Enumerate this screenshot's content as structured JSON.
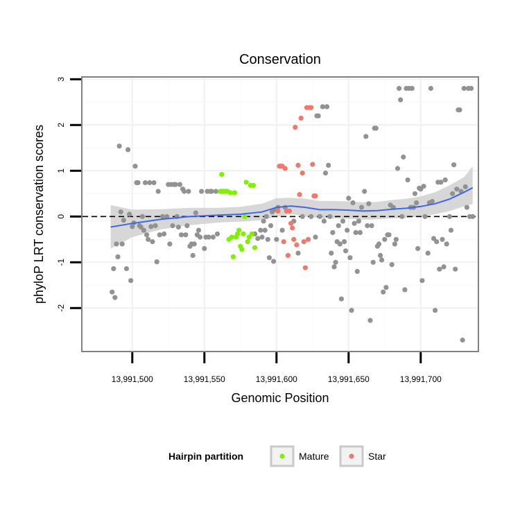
{
  "chart_data": {
    "type": "scatter",
    "title": "Conservation",
    "xlabel": "Genomic Position",
    "ylabel": "phyloP LRT conservation scores",
    "xlim": [
      13991465,
      13991740
    ],
    "ylim": [
      -2.95,
      3.05
    ],
    "x_ticks": [
      13991500,
      13991550,
      13991600,
      13991650,
      13991700
    ],
    "x_tick_labels": [
      "13,991,500",
      "13,991,550",
      "13,991,600",
      "13,991,650",
      "13,991,700"
    ],
    "y_ticks": [
      -2,
      -1,
      0,
      1,
      2,
      3
    ],
    "y_tick_labels": [
      "-2",
      "-1",
      "0",
      "1",
      "2",
      "3"
    ],
    "grid": true,
    "reference_line": {
      "y": 0,
      "style": "dashed"
    },
    "legend": {
      "title": "Hairpin partition",
      "placement": "bottom",
      "entries": [
        {
          "label": "Mature",
          "color": "#7ff000"
        },
        {
          "label": "Star",
          "color": "#f0796c"
        }
      ]
    },
    "colors": {
      "other": "#929292",
      "Mature": "#7ff000",
      "Star": "#f0796c",
      "smooth": "#3b67e8",
      "band": "#d0d0d0"
    },
    "series": [
      {
        "name": "Other",
        "points": [
          [
            13991486,
            -1.65
          ],
          [
            13991487,
            -1.14
          ],
          [
            13991488,
            -1.77
          ],
          [
            13991489,
            -0.6
          ],
          [
            13991490,
            -0.88
          ],
          [
            13991491,
            1.54
          ],
          [
            13991492,
            0.1
          ],
          [
            13991493,
            -0.6
          ],
          [
            13991494,
            -0.08
          ],
          [
            13991496,
            -1.14
          ],
          [
            13991497,
            1.46
          ],
          [
            13991498,
            0.05
          ],
          [
            13991499,
            -1.4
          ],
          [
            13991500,
            -0.22
          ],
          [
            13991501,
            -0.14
          ],
          [
            13991502,
            1.1
          ],
          [
            13991503,
            0.74
          ],
          [
            13991504,
            0.74
          ],
          [
            13991505,
            -0.2
          ],
          [
            13991506,
            -0.23
          ],
          [
            13991507,
            0.0
          ],
          [
            13991508,
            -0.3
          ],
          [
            13991509,
            0.74
          ],
          [
            13991510,
            -0.4
          ],
          [
            13991511,
            -0.5
          ],
          [
            13991512,
            0.74
          ],
          [
            13991513,
            -0.22
          ],
          [
            13991514,
            -0.55
          ],
          [
            13991515,
            0.74
          ],
          [
            13991516,
            -0.2
          ],
          [
            13991517,
            -0.99
          ],
          [
            13991518,
            0.55
          ],
          [
            13991519,
            -0.4
          ],
          [
            13991521,
            0.0
          ],
          [
            13991522,
            -0.38
          ],
          [
            13991524,
            0.0
          ],
          [
            13991525,
            0.7
          ],
          [
            13991526,
            -0.6
          ],
          [
            13991527,
            0.7
          ],
          [
            13991528,
            -0.2
          ],
          [
            13991529,
            0.7
          ],
          [
            13991530,
            0.7
          ],
          [
            13991531,
            0.0
          ],
          [
            13991532,
            -0.23
          ],
          [
            13991533,
            0.7
          ],
          [
            13991534,
            -0.4
          ],
          [
            13991535,
            0.6
          ],
          [
            13991536,
            0.55
          ],
          [
            13991537,
            -0.4
          ],
          [
            13991538,
            -0.2
          ],
          [
            13991539,
            0.55
          ],
          [
            13991540,
            -0.65
          ],
          [
            13991541,
            -0.6
          ],
          [
            13991542,
            -0.85
          ],
          [
            13991543,
            -0.6
          ],
          [
            13991544,
            0.08
          ],
          [
            13991545,
            -0.4
          ],
          [
            13991546,
            -0.3
          ],
          [
            13991547,
            -0.45
          ],
          [
            13991548,
            0.55
          ],
          [
            13991550,
            -0.7
          ],
          [
            13991551,
            -0.45
          ],
          [
            13991552,
            0.55
          ],
          [
            13991553,
            -0.45
          ],
          [
            13991554,
            0.55
          ],
          [
            13991555,
            0.55
          ],
          [
            13991556,
            -0.45
          ],
          [
            13991558,
            0.55
          ],
          [
            13991559,
            -0.38
          ],
          [
            13991562,
            0.55
          ],
          [
            13991585,
            -0.38
          ],
          [
            13991587,
            -0.48
          ],
          [
            13991589,
            -0.3
          ],
          [
            13991590,
            -0.45
          ],
          [
            13991591,
            -0.1
          ],
          [
            13991592,
            -0.3
          ],
          [
            13991593,
            0.0
          ],
          [
            13991594,
            -0.5
          ],
          [
            13991595,
            -0.9
          ],
          [
            13991596,
            -0.2
          ],
          [
            13991597,
            0.1
          ],
          [
            13991598,
            -0.98
          ],
          [
            13991599,
            0.15
          ],
          [
            13991600,
            -0.5
          ],
          [
            13991601,
            0.2
          ],
          [
            13991604,
            -0.3
          ],
          [
            13991606,
            0.2
          ],
          [
            13991612,
            -0.1
          ],
          [
            13991615,
            -0.8
          ],
          [
            13991618,
            0.0
          ],
          [
            13991624,
            0.0
          ],
          [
            13991627,
            -0.45
          ],
          [
            13991628,
            2.2
          ],
          [
            13991629,
            2.2
          ],
          [
            13991630,
            0.0
          ],
          [
            13991632,
            2.4
          ],
          [
            13991633,
            -0.1
          ],
          [
            13991634,
            0.95
          ],
          [
            13991635,
            2.4
          ],
          [
            13991636,
            1.12
          ],
          [
            13991637,
            0.0
          ],
          [
            13991638,
            -0.8
          ],
          [
            13991639,
            -0.35
          ],
          [
            13991640,
            -1.1
          ],
          [
            13991641,
            -1.0
          ],
          [
            13991642,
            -0.55
          ],
          [
            13991643,
            -0.2
          ],
          [
            13991644,
            -0.6
          ],
          [
            13991645,
            -1.8
          ],
          [
            13991646,
            -0.1
          ],
          [
            13991647,
            -0.55
          ],
          [
            13991648,
            -0.75
          ],
          [
            13991649,
            -0.3
          ],
          [
            13991650,
            0.4
          ],
          [
            13991651,
            -0.9
          ],
          [
            13991652,
            -2.05
          ],
          [
            13991653,
            0.3
          ],
          [
            13991654,
            -0.15
          ],
          [
            13991655,
            -0.35
          ],
          [
            13991656,
            -1.2
          ],
          [
            13991657,
            -0.1
          ],
          [
            13991658,
            -0.35
          ],
          [
            13991659,
            0.2
          ],
          [
            13991661,
            0.55
          ],
          [
            13991662,
            1.75
          ],
          [
            13991663,
            -0.2
          ],
          [
            13991664,
            0.28
          ],
          [
            13991665,
            -2.27
          ],
          [
            13991666,
            -0.2
          ],
          [
            13991667,
            -1.0
          ],
          [
            13991668,
            1.93
          ],
          [
            13991669,
            1.93
          ],
          [
            13991670,
            -0.65
          ],
          [
            13991671,
            -0.6
          ],
          [
            13991672,
            -0.85
          ],
          [
            13991673,
            -0.95
          ],
          [
            13991674,
            -1.65
          ],
          [
            13991675,
            -0.5
          ],
          [
            13991676,
            -1.55
          ],
          [
            13991677,
            -0.4
          ],
          [
            13991678,
            -0.4
          ],
          [
            13991679,
            0.25
          ],
          [
            13991680,
            -1.05
          ],
          [
            13991681,
            0.2
          ],
          [
            13991682,
            -0.6
          ],
          [
            13991683,
            -0.5
          ],
          [
            13991684,
            1.05
          ],
          [
            13991685,
            2.8
          ],
          [
            13991686,
            2.55
          ],
          [
            13991687,
            0.0
          ],
          [
            13991688,
            1.3
          ],
          [
            13991689,
            -1.6
          ],
          [
            13991690,
            2.8
          ],
          [
            13991691,
            0.8
          ],
          [
            13991692,
            2.8
          ],
          [
            13991693,
            0.2
          ],
          [
            13991694,
            2.8
          ],
          [
            13991695,
            0.2
          ],
          [
            13991696,
            0.5
          ],
          [
            13991697,
            0.3
          ],
          [
            13991698,
            -0.7
          ],
          [
            13991699,
            0.62
          ],
          [
            13991700,
            0.6
          ],
          [
            13991701,
            -1.4
          ],
          [
            13991702,
            0.66
          ],
          [
            13991703,
            0.0
          ],
          [
            13991705,
            -0.8
          ],
          [
            13991706,
            0.3
          ],
          [
            13991707,
            2.8
          ],
          [
            13991708,
            0.33
          ],
          [
            13991709,
            -0.48
          ],
          [
            13991710,
            -2.05
          ],
          [
            13991711,
            -0.55
          ],
          [
            13991712,
            0.75
          ],
          [
            13991713,
            -1.15
          ],
          [
            13991714,
            0.75
          ],
          [
            13991715,
            -0.5
          ],
          [
            13991716,
            -1.1
          ],
          [
            13991717,
            0.8
          ],
          [
            13991718,
            -0.6
          ],
          [
            13991720,
            0.0
          ],
          [
            13991721,
            -0.3
          ],
          [
            13991722,
            0.5
          ],
          [
            13991723,
            1.13
          ],
          [
            13991724,
            -1.15
          ],
          [
            13991725,
            0.6
          ],
          [
            13991726,
            2.33
          ],
          [
            13991727,
            2.33
          ],
          [
            13991728,
            0.55
          ],
          [
            13991729,
            -2.7
          ],
          [
            13991730,
            2.8
          ],
          [
            13991731,
            0.65
          ],
          [
            13991732,
            0.2
          ],
          [
            13991733,
            2.8
          ],
          [
            13991734,
            0.0
          ],
          [
            13991735,
            2.8
          ],
          [
            13991736,
            0.0
          ]
        ]
      },
      {
        "name": "Mature",
        "points": [
          [
            13991561,
            0.55
          ],
          [
            13991562,
            0.92
          ],
          [
            13991563,
            0.55
          ],
          [
            13991564,
            0.55
          ],
          [
            13991565,
            0.55
          ],
          [
            13991566,
            0.55
          ],
          [
            13991567,
            -0.5
          ],
          [
            13991568,
            0.52
          ],
          [
            13991569,
            -0.45
          ],
          [
            13991570,
            -0.88
          ],
          [
            13991571,
            0.52
          ],
          [
            13991572,
            -0.45
          ],
          [
            13991573,
            -0.38
          ],
          [
            13991574,
            -0.3
          ],
          [
            13991575,
            -0.65
          ],
          [
            13991576,
            -0.72
          ],
          [
            13991577,
            -0.38
          ],
          [
            13991578,
            0.0
          ],
          [
            13991579,
            0.75
          ],
          [
            13991580,
            -0.55
          ],
          [
            13991581,
            -0.45
          ],
          [
            13991582,
            0.68
          ],
          [
            13991583,
            -0.38
          ],
          [
            13991584,
            0.68
          ],
          [
            13991585,
            -0.68
          ]
        ]
      },
      {
        "name": "Star",
        "points": [
          [
            13991601,
            0.12
          ],
          [
            13991602,
            1.1
          ],
          [
            13991603,
            1.1
          ],
          [
            13991604,
            1.1
          ],
          [
            13991605,
            -0.55
          ],
          [
            13991606,
            1.05
          ],
          [
            13991607,
            0.12
          ],
          [
            13991608,
            -0.85
          ],
          [
            13991609,
            0.12
          ],
          [
            13991610,
            -0.15
          ],
          [
            13991611,
            -0.25
          ],
          [
            13991612,
            -0.5
          ],
          [
            13991613,
            1.95
          ],
          [
            13991614,
            -0.62
          ],
          [
            13991615,
            1.12
          ],
          [
            13991616,
            0.48
          ],
          [
            13991617,
            2.15
          ],
          [
            13991618,
            0.95
          ],
          [
            13991619,
            -0.55
          ],
          [
            13991620,
            -1.12
          ],
          [
            13991621,
            2.38
          ],
          [
            13991622,
            -0.5
          ],
          [
            13991623,
            2.38
          ],
          [
            13991624,
            2.38
          ],
          [
            13991625,
            1.14
          ],
          [
            13991626,
            0.45
          ],
          [
            13991627,
            0.45
          ]
        ]
      }
    ],
    "smooth": {
      "x": [
        13991485,
        13991500,
        13991520,
        13991540,
        13991560,
        13991575,
        13991590,
        13991600,
        13991610,
        13991620,
        13991630,
        13991640,
        13991650,
        13991660,
        13991670,
        13991680,
        13991690,
        13991700,
        13991710,
        13991720,
        13991730,
        13991736
      ],
      "y": [
        -0.23,
        -0.15,
        -0.06,
        0.0,
        0.03,
        0.05,
        0.1,
        0.2,
        0.23,
        0.2,
        0.15,
        0.15,
        0.14,
        0.12,
        0.13,
        0.16,
        0.18,
        0.22,
        0.28,
        0.38,
        0.53,
        0.63
      ],
      "ci_low": [
        -0.7,
        -0.45,
        -0.28,
        -0.19,
        -0.13,
        -0.11,
        -0.08,
        0.0,
        0.05,
        0.01,
        -0.04,
        -0.04,
        -0.05,
        -0.07,
        -0.06,
        -0.04,
        -0.03,
        0.0,
        0.05,
        0.12,
        0.22,
        0.27
      ],
      "ci_high": [
        0.25,
        0.15,
        0.16,
        0.19,
        0.19,
        0.21,
        0.28,
        0.4,
        0.41,
        0.39,
        0.34,
        0.34,
        0.33,
        0.31,
        0.32,
        0.36,
        0.39,
        0.44,
        0.53,
        0.68,
        0.86,
        1.1
      ]
    }
  }
}
